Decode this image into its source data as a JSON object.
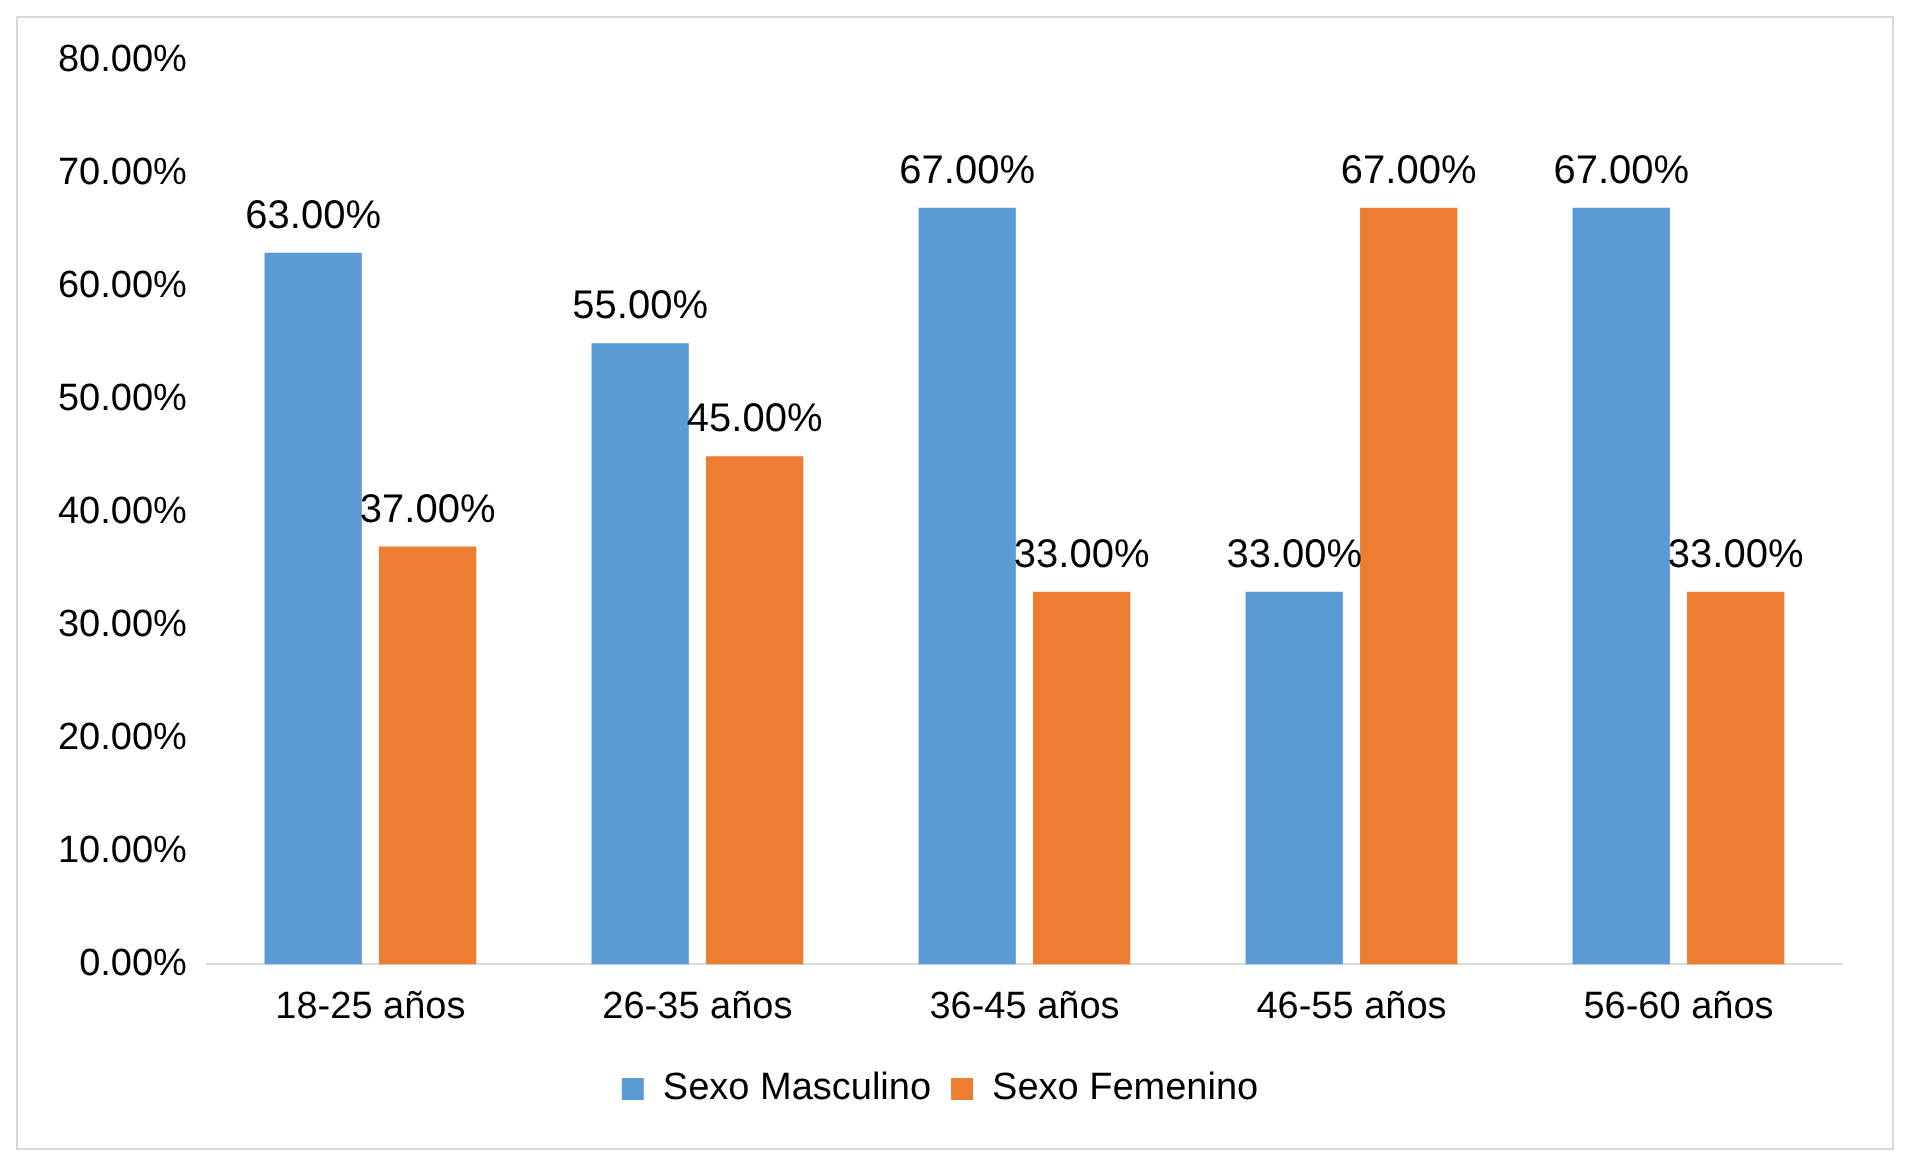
{
  "chart_data": {
    "type": "bar",
    "categories": [
      "18-25 años",
      "26-35 años",
      "36-45 años",
      "46-55 años",
      "56-60 años"
    ],
    "series": [
      {
        "name": "Sexo Masculino",
        "color": "#5b9bd5",
        "values": [
          63,
          55,
          67,
          33,
          67
        ],
        "value_labels": [
          "63.00%",
          "55.00%",
          "67.00%",
          "33.00%",
          "67.00%"
        ]
      },
      {
        "name": "Sexo Femenino",
        "color": "#ed7d31",
        "values": [
          37,
          45,
          33,
          67,
          33
        ],
        "value_labels": [
          "37.00%",
          "45.00%",
          "33.00%",
          "67.00%",
          "33.00%"
        ]
      }
    ],
    "ylim": [
      0,
      80
    ],
    "yticks": [
      {
        "value": 0,
        "label": "0.00%"
      },
      {
        "value": 10,
        "label": "10.00%"
      },
      {
        "value": 20,
        "label": "20.00%"
      },
      {
        "value": 30,
        "label": "30.00%"
      },
      {
        "value": 40,
        "label": "40.00%"
      },
      {
        "value": 50,
        "label": "50.00%"
      },
      {
        "value": 60,
        "label": "60.00%"
      },
      {
        "value": 70,
        "label": "70.00%"
      },
      {
        "value": 80,
        "label": "80.00%"
      }
    ],
    "legend": "bottom"
  }
}
